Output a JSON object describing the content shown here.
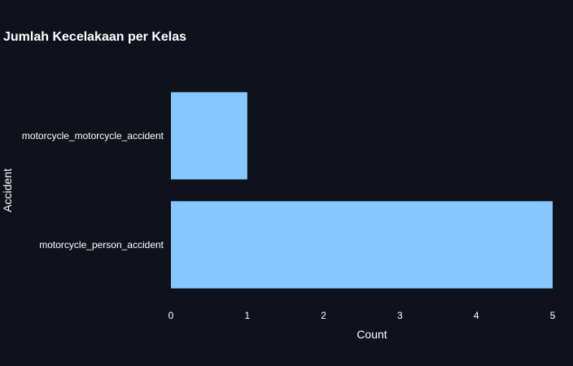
{
  "chart_data": {
    "type": "bar",
    "orientation": "horizontal",
    "title": "Jumlah Kecelakaan per Kelas",
    "xlabel": "Count",
    "ylabel": "Accident",
    "categories": [
      "motorcycle_motorcycle_accident",
      "motorcycle_person_accident"
    ],
    "values": [
      1,
      5
    ],
    "xlim": [
      0,
      5
    ],
    "xticks": [
      "0",
      "1",
      "2",
      "3",
      "4",
      "5"
    ],
    "grid": false,
    "bar_color": "#85c8ff",
    "background": "#0f121a"
  }
}
